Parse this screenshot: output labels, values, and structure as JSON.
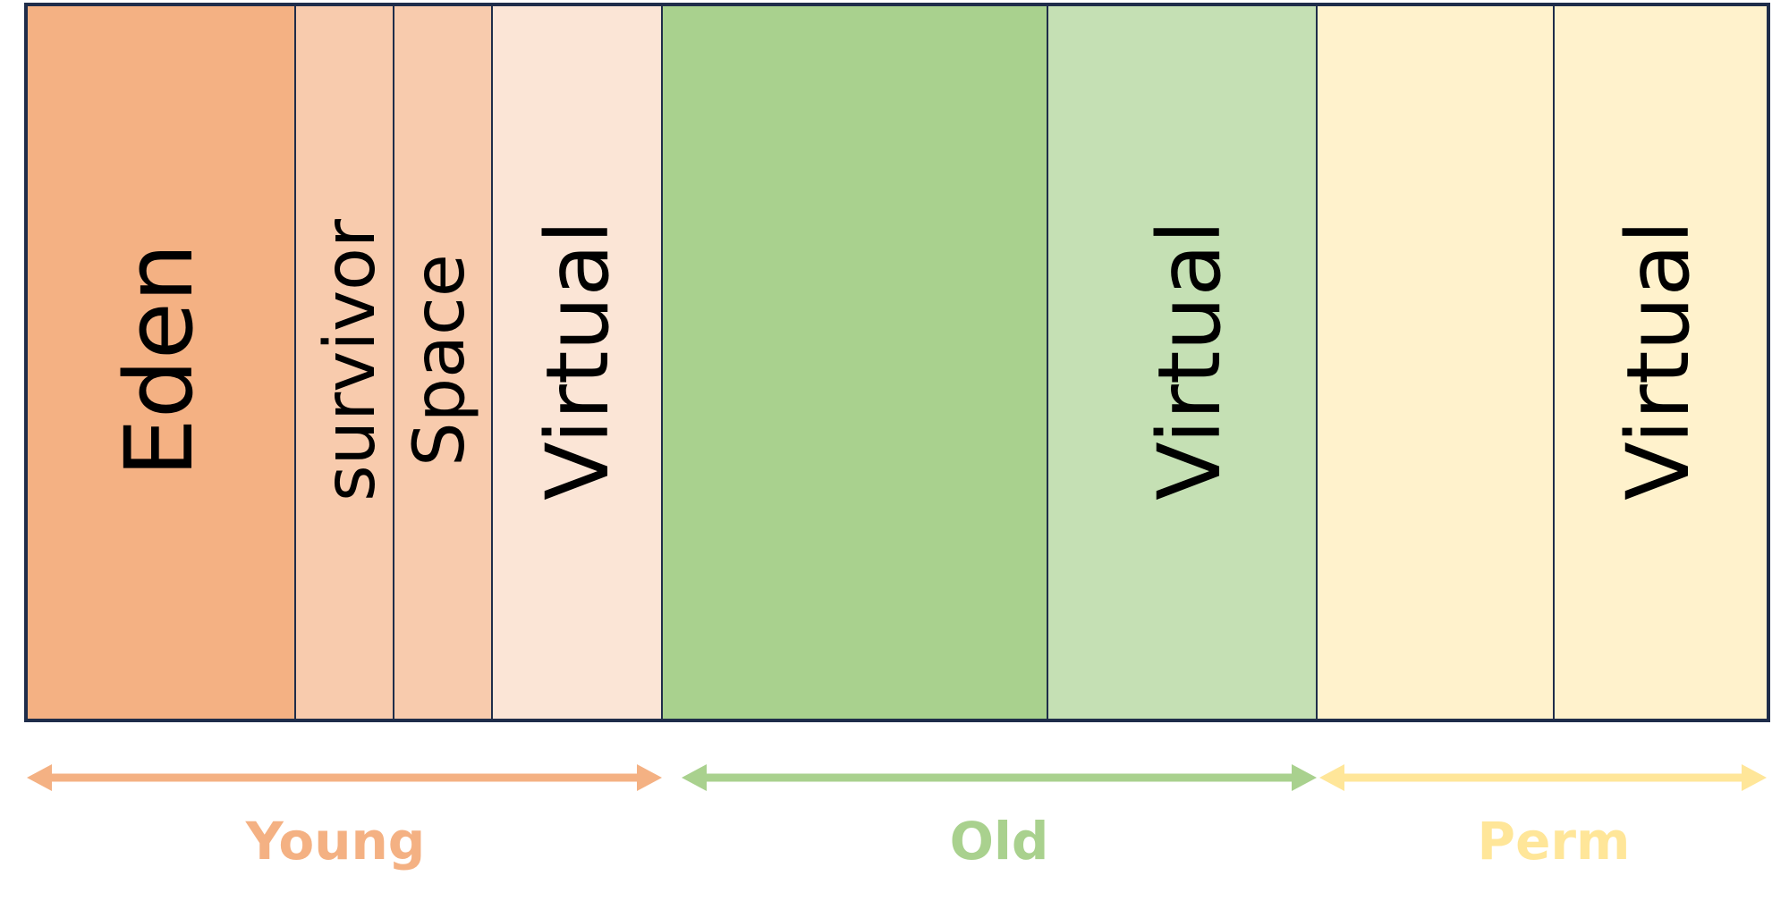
{
  "segments": {
    "eden": {
      "label": "Eden",
      "color": "#f4b183"
    },
    "survivor1": {
      "label": "survivor",
      "color": "#f8cbad"
    },
    "survivor2": {
      "label": "Space",
      "color": "#f8cbad"
    },
    "young_virtual": {
      "label": "Virtual",
      "color": "#fbe5d6"
    },
    "old_used": {
      "label": "",
      "color": "#a9d18e"
    },
    "old_virtual": {
      "label": "Virtual",
      "color": "#c5e0b4"
    },
    "perm_used": {
      "label": "",
      "color": "#fff2cc"
    },
    "perm_virtual": {
      "label": "Virtual",
      "color": "#fff2cc"
    }
  },
  "generations": {
    "young": {
      "label": "Young",
      "color": "#f4b183"
    },
    "old": {
      "label": "Old",
      "color": "#a9d18e"
    },
    "perm": {
      "label": "Perm",
      "color": "#ffe699"
    }
  },
  "colors": {
    "border": "#1f2d4a"
  }
}
